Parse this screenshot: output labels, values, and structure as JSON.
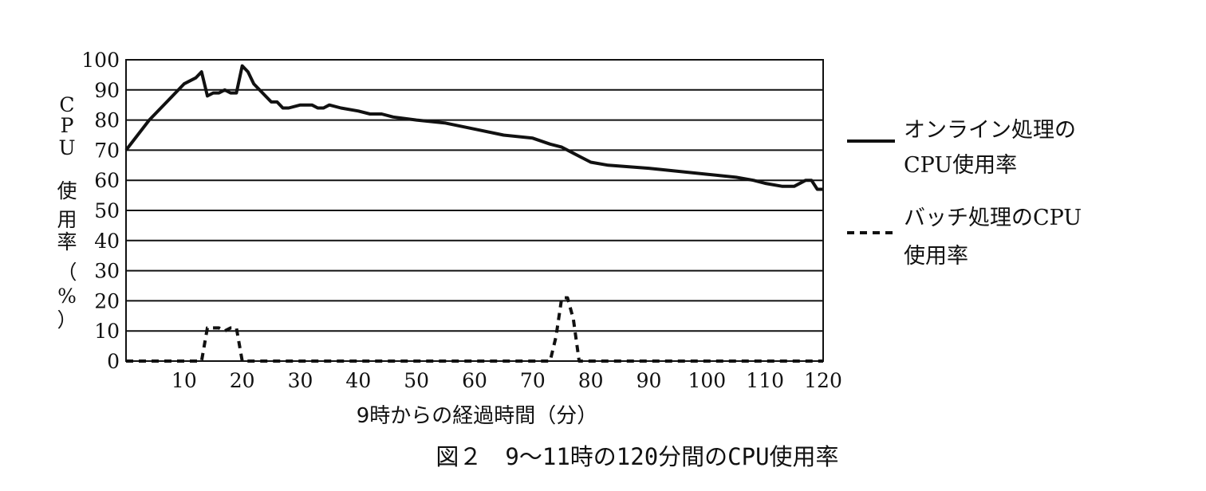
{
  "chart_data": {
    "type": "line",
    "caption": "図２　9～11時の120分間のCPU使用率",
    "xlabel": "9時からの経過時間（分）",
    "ylabel": "CPU使用率（%）",
    "xlim": [
      0,
      120
    ],
    "ylim": [
      0,
      100
    ],
    "x_ticks": [
      10,
      20,
      30,
      40,
      50,
      60,
      70,
      80,
      90,
      100,
      110,
      120
    ],
    "y_ticks": [
      0,
      10,
      20,
      30,
      40,
      50,
      60,
      70,
      80,
      90,
      100
    ],
    "grid": "horizontal",
    "legend_position": "right",
    "series": [
      {
        "name": "オンライン処理のCPU使用率",
        "style": "solid",
        "x": [
          0,
          4,
          8,
          10,
          12,
          13,
          14,
          15,
          16,
          17,
          18,
          19,
          20,
          21,
          22,
          24,
          25,
          26,
          27,
          28,
          30,
          32,
          33,
          34,
          35,
          37,
          40,
          42,
          44,
          46,
          50,
          55,
          60,
          65,
          70,
          73,
          75,
          77,
          78,
          80,
          83,
          90,
          95,
          100,
          105,
          108,
          110,
          113,
          115,
          117,
          118,
          119,
          120
        ],
        "y": [
          70,
          80,
          88,
          92,
          94,
          96,
          88,
          89,
          89,
          90,
          89,
          89,
          98,
          96,
          92,
          88,
          86,
          86,
          84,
          84,
          85,
          85,
          84,
          84,
          85,
          84,
          83,
          82,
          82,
          81,
          80,
          79,
          77,
          75,
          74,
          72,
          71,
          69,
          68,
          66,
          65,
          64,
          63,
          62,
          61,
          60,
          59,
          58,
          58,
          60,
          60,
          57,
          57
        ]
      },
      {
        "name": "バッチ処理のCPU使用率",
        "style": "dashed",
        "x": [
          0,
          13,
          14,
          15,
          16,
          17,
          18,
          19,
          20,
          21,
          72,
          73,
          74,
          75,
          76,
          77,
          78,
          79,
          120
        ],
        "y": [
          0,
          0,
          11,
          11,
          11,
          10,
          11,
          11,
          0,
          0,
          0,
          0,
          8,
          21,
          21,
          14,
          0,
          0,
          0
        ]
      }
    ]
  },
  "legend": {
    "online": [
      "オンライン処理の",
      "CPU使用率"
    ],
    "batch": [
      "バッチ処理のCPU",
      "使用率"
    ]
  },
  "ylabel_chars": [
    "C",
    "P",
    "U",
    "使",
    "用",
    "率",
    "（",
    "%",
    "）"
  ],
  "colors": {
    "line": "#111111",
    "grid": "#111111",
    "background": "#ffffff"
  }
}
